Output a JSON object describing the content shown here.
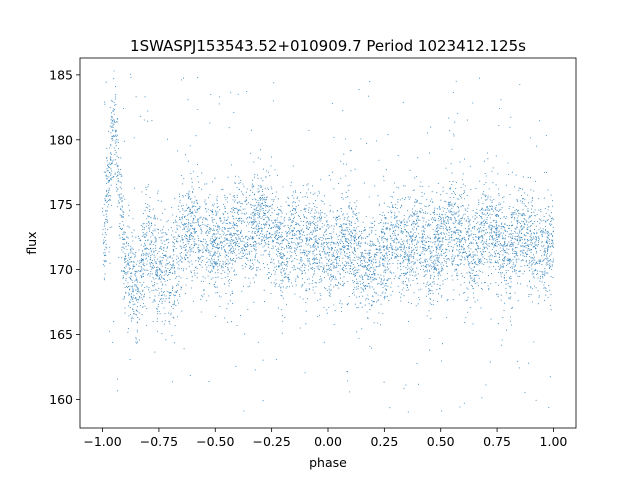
{
  "chart_data": {
    "type": "scatter",
    "title": "1SWASPJ153543.52+010909.7 Period 1023412.125s",
    "xlabel": "phase",
    "ylabel": "flux",
    "xlim": [
      -1.1,
      1.1
    ],
    "ylim": [
      157.8,
      186.3
    ],
    "xticks": [
      -1.0,
      -0.75,
      -0.5,
      -0.25,
      0.0,
      0.25,
      0.5,
      0.75,
      1.0
    ],
    "xtick_labels": [
      "−1.00",
      "−0.75",
      "−0.50",
      "−0.25",
      "0.00",
      "0.25",
      "0.50",
      "0.75",
      "1.00"
    ],
    "yticks": [
      160,
      165,
      170,
      175,
      180,
      185
    ],
    "ytick_labels": [
      "160",
      "165",
      "170",
      "175",
      "180",
      "185"
    ],
    "grid": false,
    "legend": "none",
    "marker_color": "#1f77b4",
    "series": [
      {
        "x_range": [
          -1.0,
          1.0
        ],
        "baseline_flux": 171.8,
        "core_band": [
          167.0,
          176.0
        ],
        "outlier_range": [
          159.0,
          185.3
        ],
        "points": [
          [
            -1.0,
            171.6
          ],
          [
            -0.97,
            176.5
          ],
          [
            -0.95,
            182.0
          ],
          [
            -0.9,
            170.8
          ],
          [
            -0.85,
            168.2
          ],
          [
            -0.8,
            172.0
          ],
          [
            -0.75,
            170.2
          ],
          [
            -0.7,
            169.5
          ],
          [
            -0.65,
            172.5
          ],
          [
            -0.6,
            173.6
          ],
          [
            -0.55,
            171.8
          ],
          [
            -0.5,
            172.2
          ],
          [
            -0.45,
            171.6
          ],
          [
            -0.4,
            173.4
          ],
          [
            -0.35,
            172.1
          ],
          [
            -0.3,
            174.2
          ],
          [
            -0.25,
            172.8
          ],
          [
            -0.2,
            171.3
          ],
          [
            -0.15,
            173.1
          ],
          [
            -0.1,
            171.4
          ],
          [
            -0.05,
            172.6
          ],
          [
            0.0,
            170.9
          ],
          [
            0.05,
            171.7
          ],
          [
            0.1,
            172.4
          ],
          [
            0.15,
            169.8
          ],
          [
            0.2,
            170.6
          ],
          [
            0.25,
            171.2
          ],
          [
            0.3,
            172.7
          ],
          [
            0.35,
            171.5
          ],
          [
            0.4,
            172.9
          ],
          [
            0.45,
            171.1
          ],
          [
            0.5,
            172.0
          ],
          [
            0.55,
            173.3
          ],
          [
            0.6,
            172.2
          ],
          [
            0.65,
            171.0
          ],
          [
            0.7,
            173.6
          ],
          [
            0.75,
            172.4
          ],
          [
            0.8,
            171.4
          ],
          [
            0.85,
            173.0
          ],
          [
            0.9,
            172.1
          ],
          [
            0.95,
            171.6
          ],
          [
            1.0,
            171.9
          ]
        ]
      }
    ]
  }
}
